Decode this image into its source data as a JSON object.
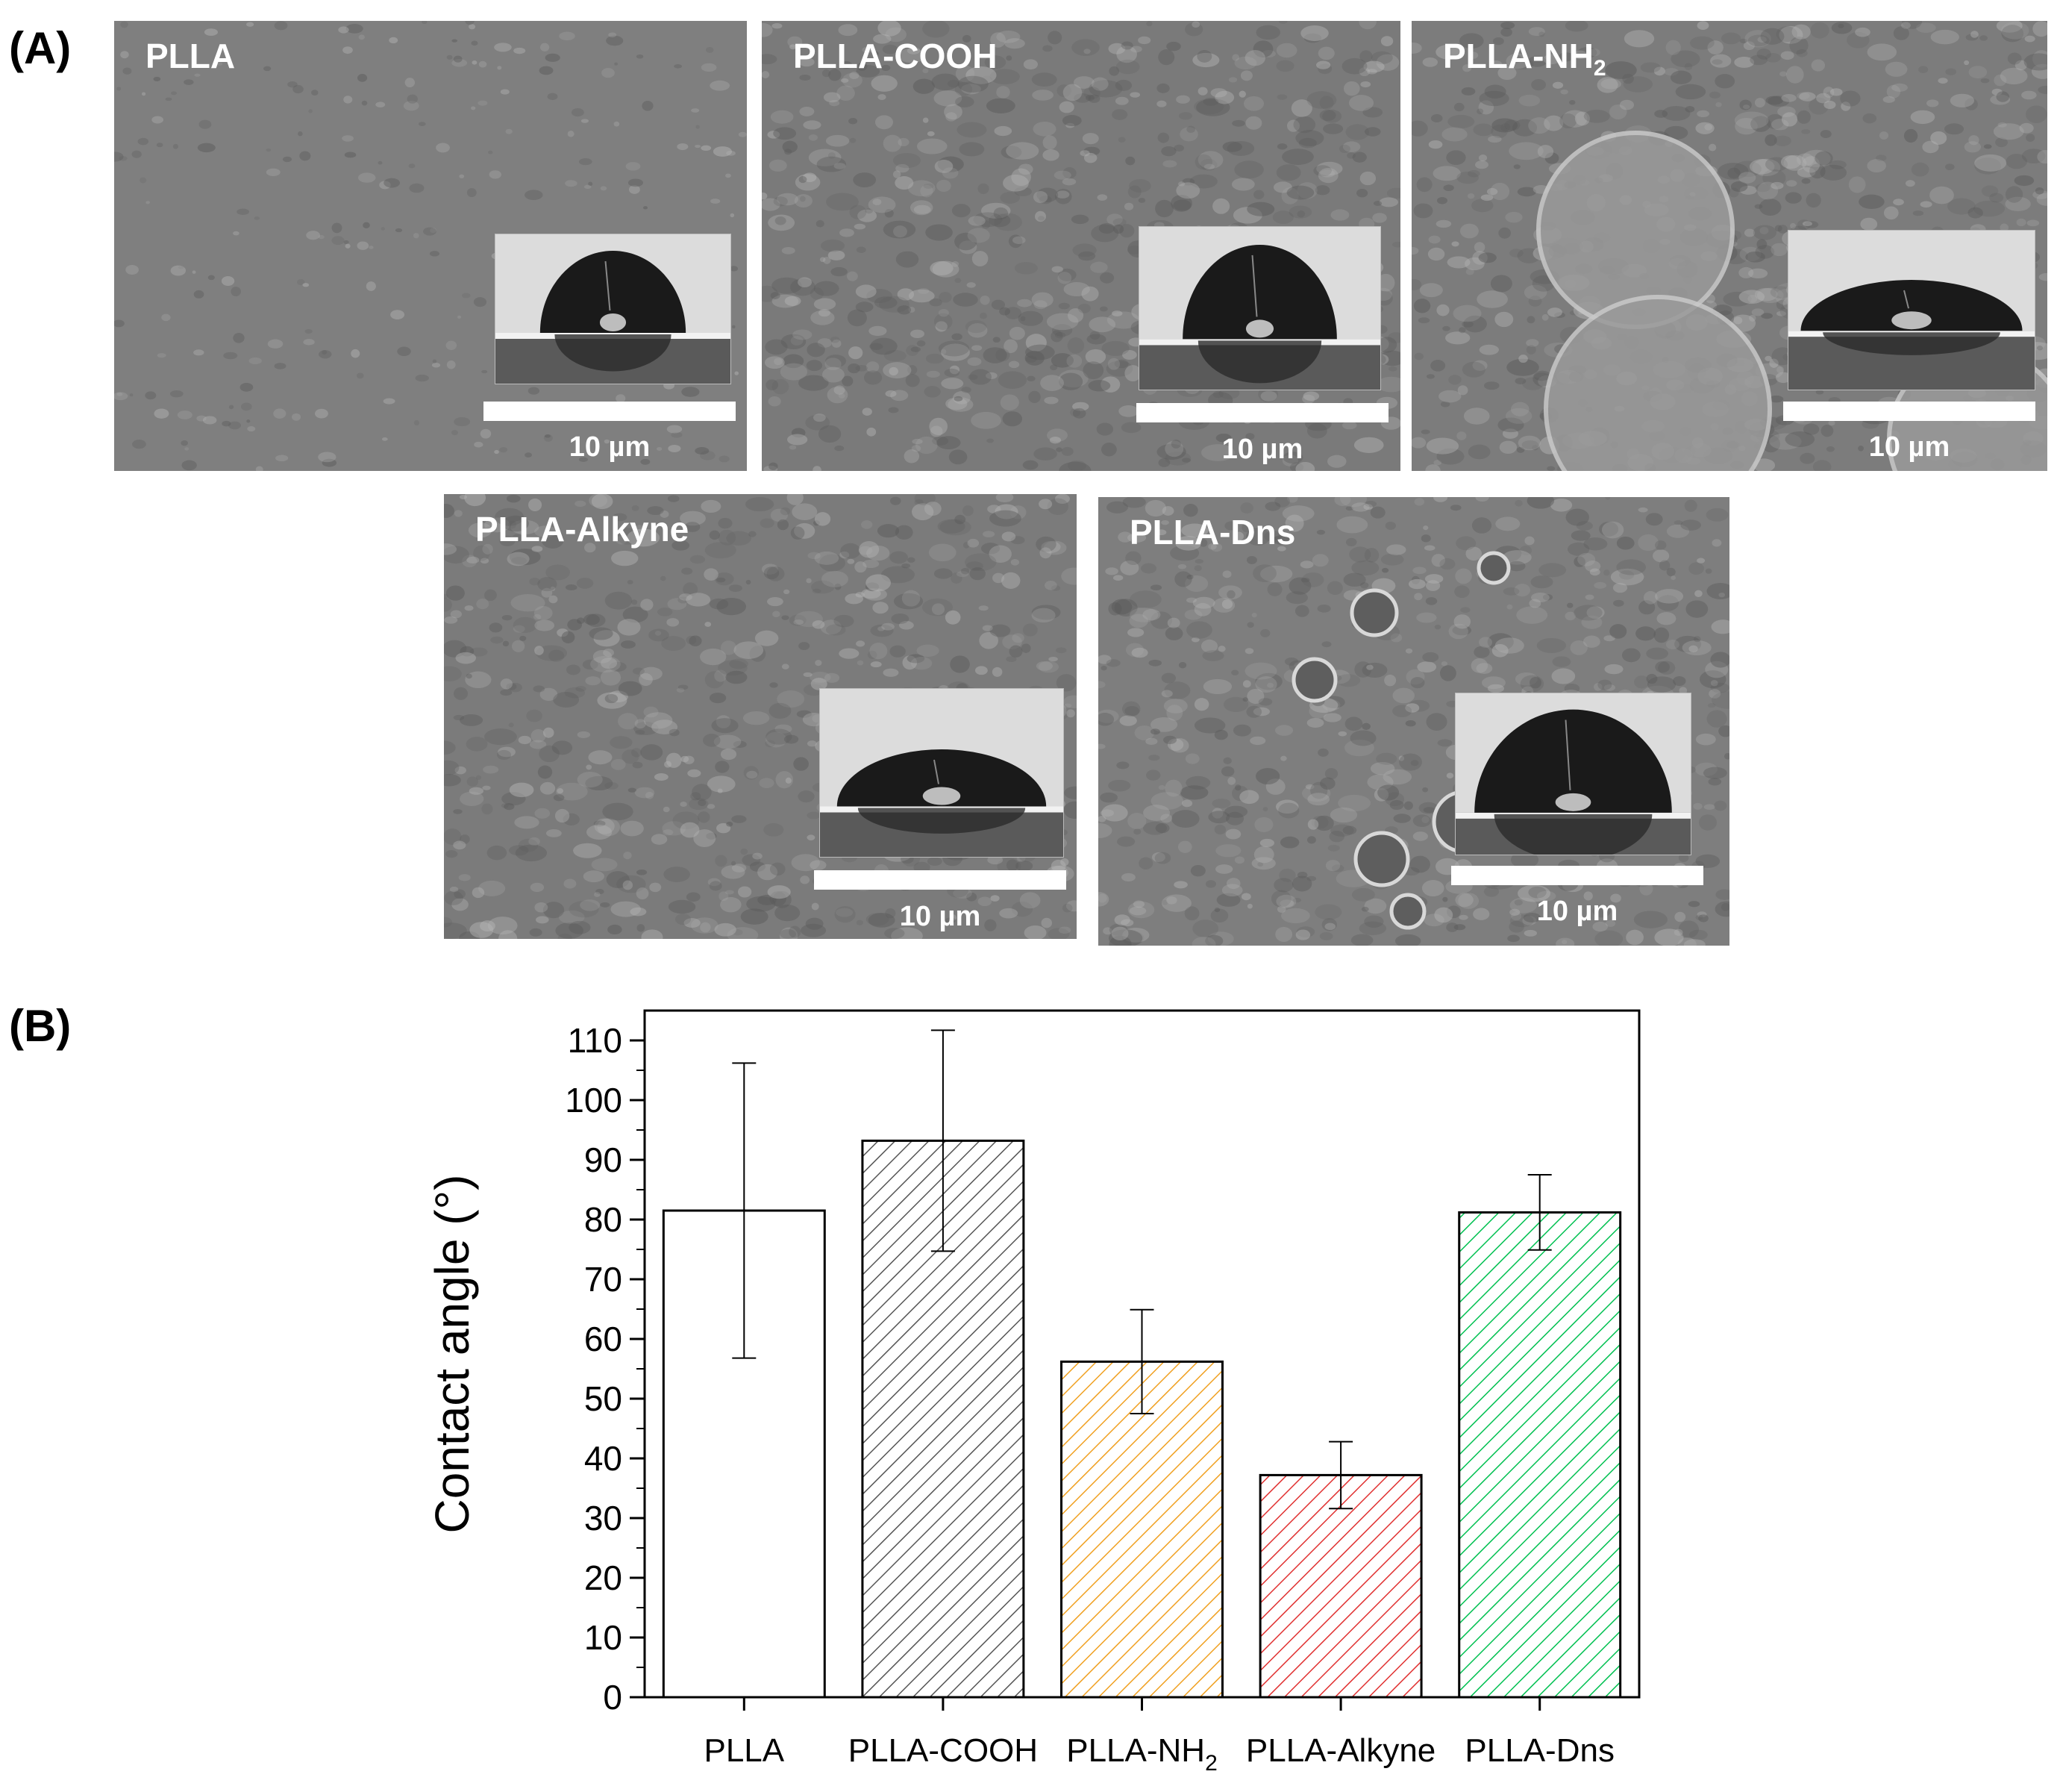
{
  "panel_labels": {
    "a": "(A)",
    "b": "(B)"
  },
  "sem_panels": [
    {
      "label": "PLLA",
      "label_sub": "",
      "scale": "10 µm",
      "tone": "#7f7f7f",
      "roughness": "smooth"
    },
    {
      "label": "PLLA-COOH",
      "label_sub": "",
      "scale": "10 µm",
      "tone": "#7a7a7a",
      "roughness": "rough"
    },
    {
      "label": "PLLA-NH",
      "label_sub": "2",
      "scale": "10 µm",
      "tone": "#7c7c7c",
      "roughness": "nodules"
    },
    {
      "label": "PLLA-Alkyne",
      "label_sub": "",
      "scale": "10 µm",
      "tone": "#7b7b7b",
      "roughness": "rough"
    },
    {
      "label": "PLLA-Dns",
      "label_sub": "",
      "scale": "10 µm",
      "tone": "#7e7e7e",
      "roughness": "pores"
    }
  ],
  "chart_data": {
    "type": "bar",
    "categories": [
      "PLLA",
      "PLLA-COOH",
      "PLLA-NH2",
      "PLLA-Alkyne",
      "PLLA-Dns"
    ],
    "category_labels": [
      {
        "main": "PLLA",
        "sub": ""
      },
      {
        "main": "PLLA-COOH",
        "sub": ""
      },
      {
        "main": "PLLA-NH",
        "sub": "2"
      },
      {
        "main": "PLLA-Alkyne",
        "sub": ""
      },
      {
        "main": "PLLA-Dns",
        "sub": ""
      }
    ],
    "values": [
      81.5,
      93.2,
      56.2,
      37.2,
      81.2
    ],
    "errors": [
      24.7,
      18.5,
      8.7,
      5.6,
      6.3
    ],
    "colors": [
      "#000000",
      "#555555",
      "#f0a020",
      "#e03030",
      "#00c050"
    ],
    "patterns": [
      "none",
      "hatch",
      "hatch",
      "hatch",
      "hatch"
    ],
    "ylabel": "Contact angle (°)",
    "xlabel": "",
    "title": "",
    "ylim": [
      0,
      115
    ],
    "yticks": [
      0,
      10,
      20,
      30,
      40,
      50,
      60,
      70,
      80,
      90,
      100,
      110
    ],
    "grid": false
  }
}
